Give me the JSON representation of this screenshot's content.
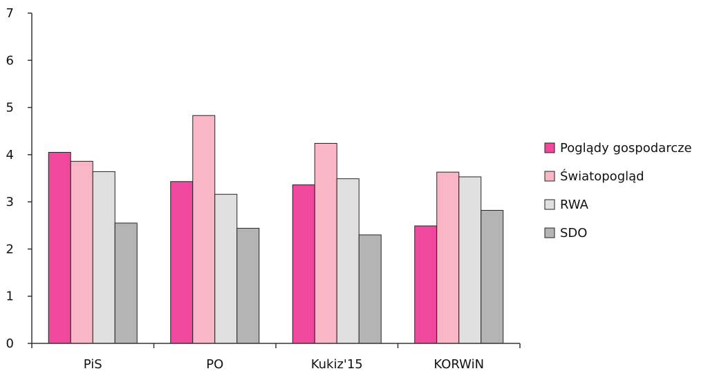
{
  "chart_data": {
    "type": "bar",
    "categories": [
      "PiS",
      "PO",
      "Kukiz'15",
      "KORWiN"
    ],
    "series": [
      {
        "name": "Poglądy gospodarcze",
        "color": "#f0489c",
        "values": [
          4.05,
          3.43,
          3.36,
          2.49
        ]
      },
      {
        "name": "Światopogląd",
        "color": "#f9b6c6",
        "values": [
          3.86,
          4.83,
          4.24,
          3.63
        ]
      },
      {
        "name": "RWA",
        "color": "#e0e0e0",
        "values": [
          3.64,
          3.16,
          3.49,
          3.53
        ]
      },
      {
        "name": "SDO",
        "color": "#b4b4b4",
        "values": [
          2.55,
          2.44,
          2.3,
          2.82
        ]
      }
    ],
    "yticks": [
      "0",
      "1",
      "2",
      "3",
      "4",
      "5",
      "6",
      "7"
    ],
    "ylim": [
      0,
      7
    ],
    "grid": false,
    "legend_position": "right"
  }
}
